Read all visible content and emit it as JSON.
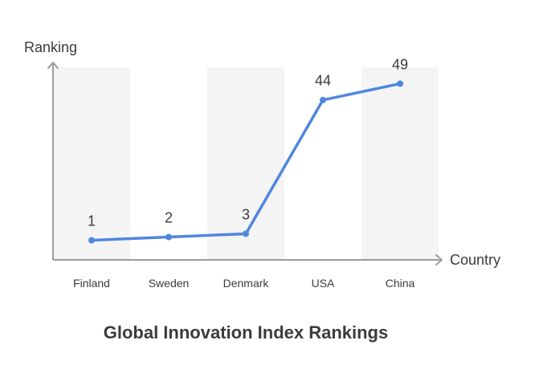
{
  "chart_data": {
    "type": "line",
    "title": "Global Innovation Index Rankings",
    "xlabel": "Country",
    "ylabel": "Ranking",
    "categories": [
      "Finland",
      "Sweden",
      "Denmark",
      "USA",
      "China"
    ],
    "series": [
      {
        "values": [
          1,
          2,
          3,
          44,
          49
        ]
      }
    ],
    "ylim": [
      -5,
      54
    ],
    "grid": false,
    "alternating_column_bands": true,
    "colors": {
      "line": "#4f86e0",
      "band": "#f4f4f4",
      "axis": "#9b9b9b",
      "text": "#3b3b3b"
    }
  }
}
